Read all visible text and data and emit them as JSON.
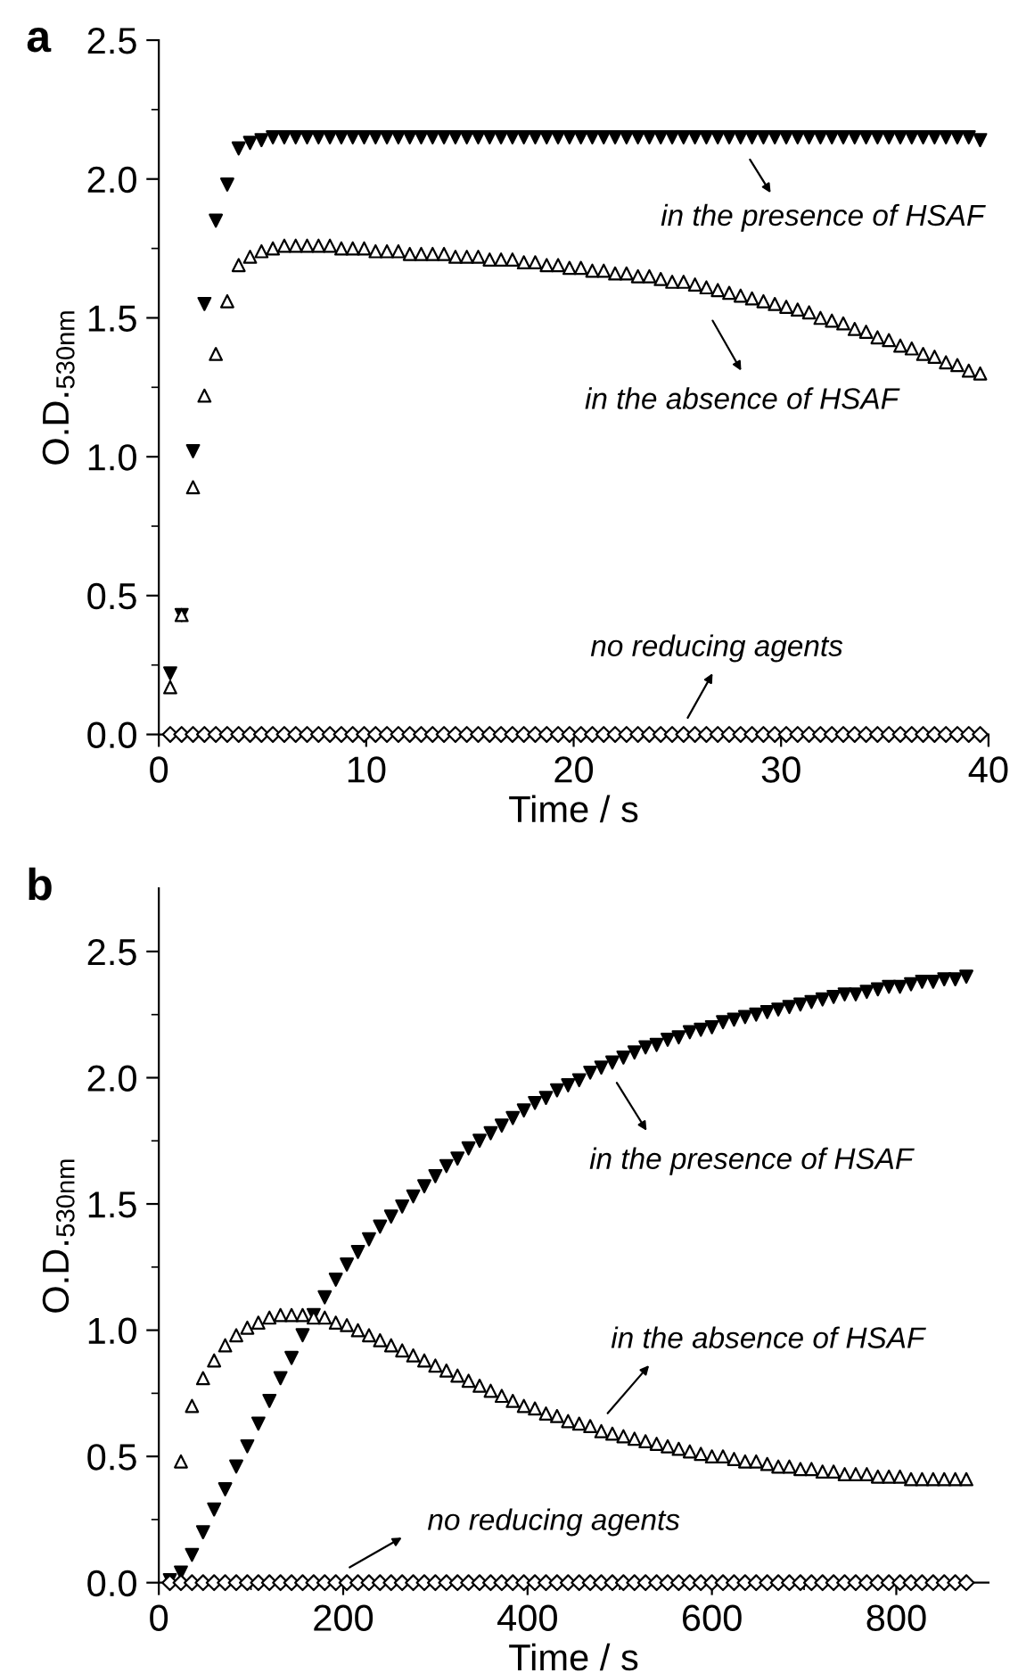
{
  "chart_data": [
    {
      "type": "scatter",
      "title": "a",
      "xlabel": "Time / s",
      "ylabel": "O.D.$_{530nm}$",
      "x": [
        0.55,
        1.1,
        1.65,
        2.2,
        2.75,
        3.3,
        3.85,
        4.4,
        4.95,
        5.5,
        6.05,
        6.6,
        7.15,
        7.7,
        8.25,
        8.8,
        9.35,
        9.9,
        10.45,
        11,
        11.55,
        12.1,
        12.65,
        13.2,
        13.75,
        14.3,
        14.85,
        15.4,
        15.95,
        16.5,
        17.05,
        17.6,
        18.15,
        18.7,
        19.25,
        19.8,
        20.35,
        20.9,
        21.45,
        22,
        22.55,
        23.1,
        23.65,
        24.2,
        24.75,
        25.3,
        25.85,
        26.4,
        26.95,
        27.5,
        28.05,
        28.6,
        29.15,
        29.7,
        30.25,
        30.8,
        31.35,
        31.9,
        32.45,
        33,
        33.55,
        34.1,
        34.65,
        35.2,
        35.75,
        36.3,
        36.85,
        37.4,
        37.95,
        38.5,
        39.05,
        39.6
      ],
      "series": [
        {
          "name": null,
          "color": "#000000",
          "marker": "triangle_down",
          "values": [
            0.22,
            0.43,
            1.02,
            1.55,
            1.85,
            1.98,
            2.11,
            2.13,
            2.14,
            2.15,
            2.15,
            2.15,
            2.15,
            2.15,
            2.15,
            2.15,
            2.15,
            2.15,
            2.15,
            2.15,
            2.15,
            2.15,
            2.15,
            2.15,
            2.15,
            2.15,
            2.15,
            2.15,
            2.15,
            2.15,
            2.15,
            2.15,
            2.15,
            2.15,
            2.15,
            2.15,
            2.15,
            2.15,
            2.15,
            2.15,
            2.15,
            2.15,
            2.15,
            2.15,
            2.15,
            2.15,
            2.15,
            2.15,
            2.15,
            2.15,
            2.15,
            2.15,
            2.15,
            2.15,
            2.15,
            2.15,
            2.15,
            2.15,
            2.15,
            2.15,
            2.15,
            2.15,
            2.15,
            2.15,
            2.15,
            2.15,
            2.15,
            2.15,
            2.15,
            2.15,
            2.15,
            2.14
          ]
        },
        {
          "name": null,
          "color": "#000000",
          "marker": "triangle",
          "values": [
            0.17,
            0.43,
            0.89,
            1.22,
            1.37,
            1.56,
            1.69,
            1.72,
            1.74,
            1.75,
            1.76,
            1.76,
            1.76,
            1.76,
            1.76,
            1.75,
            1.75,
            1.75,
            1.74,
            1.74,
            1.74,
            1.73,
            1.73,
            1.73,
            1.73,
            1.72,
            1.72,
            1.72,
            1.71,
            1.71,
            1.71,
            1.7,
            1.7,
            1.69,
            1.69,
            1.68,
            1.68,
            1.67,
            1.67,
            1.66,
            1.66,
            1.65,
            1.65,
            1.64,
            1.63,
            1.63,
            1.62,
            1.61,
            1.6,
            1.59,
            1.58,
            1.57,
            1.56,
            1.55,
            1.54,
            1.53,
            1.52,
            1.5,
            1.49,
            1.48,
            1.46,
            1.45,
            1.43,
            1.42,
            1.4,
            1.39,
            1.37,
            1.36,
            1.34,
            1.33,
            1.31,
            1.3
          ]
        },
        {
          "name": null,
          "color": "#000000",
          "marker": "diamond",
          "values": [
            0,
            0,
            0,
            0,
            0,
            0,
            0,
            0,
            0,
            0,
            0,
            0,
            0,
            0,
            0,
            0,
            0,
            0,
            0,
            0,
            0,
            0,
            0,
            0,
            0,
            0,
            0,
            0,
            0,
            0,
            0,
            0,
            0,
            0,
            0,
            0,
            0,
            0,
            0,
            0,
            0,
            0,
            0,
            0,
            0,
            0,
            0,
            0,
            0,
            0,
            0,
            0,
            0,
            0,
            0,
            0,
            0,
            0,
            0,
            0,
            0,
            0,
            0,
            0,
            0,
            0,
            0,
            0,
            0,
            0,
            0,
            0
          ]
        }
      ],
      "xlim": [
        0,
        40
      ],
      "xticks": [
        0,
        10,
        20,
        30,
        40
      ],
      "ylim": [
        0,
        2.5
      ],
      "yticks": [
        {
          "value": 0,
          "label": "0.0"
        },
        {
          "value": 0.25,
          "label": null
        },
        {
          "value": 0.5,
          "label": "0.5"
        },
        {
          "value": 0.75,
          "label": null
        },
        {
          "value": 1.0,
          "label": "1.0"
        },
        {
          "value": 1.25,
          "label": null
        },
        {
          "value": 1.5,
          "label": "1.5"
        },
        {
          "value": 1.75,
          "label": null
        },
        {
          "value": 2.0,
          "label": "2.0"
        },
        {
          "value": 2.25,
          "label": null
        },
        {
          "value": 2.5,
          "label": "2.5"
        }
      ],
      "grid": false,
      "legend": false,
      "annotations": [
        "in the presence of HSAF",
        "in the absence of HSAF",
        "no reducing agents"
      ]
    },
    {
      "type": "scatter",
      "title": "b",
      "xlabel": "Time / s",
      "ylabel": "O.D.$_{530nm}$",
      "x": [
        12,
        24,
        36,
        48,
        60,
        72,
        84,
        96,
        108,
        120,
        132,
        144,
        156,
        168,
        180,
        192,
        204,
        216,
        228,
        240,
        252,
        264,
        276,
        288,
        300,
        312,
        324,
        336,
        348,
        360,
        372,
        384,
        396,
        408,
        420,
        432,
        444,
        456,
        468,
        480,
        492,
        504,
        516,
        528,
        540,
        552,
        564,
        576,
        588,
        600,
        612,
        624,
        636,
        648,
        660,
        672,
        684,
        696,
        708,
        720,
        732,
        744,
        756,
        768,
        780,
        792,
        804,
        816,
        828,
        840,
        852,
        864,
        876
      ],
      "series": [
        {
          "name": null,
          "color": "#000000",
          "marker": "triangle_down",
          "values": [
            0.01,
            0.04,
            0.11,
            0.2,
            0.29,
            0.37,
            0.46,
            0.54,
            0.63,
            0.72,
            0.81,
            0.89,
            0.98,
            1.06,
            1.13,
            1.2,
            1.26,
            1.31,
            1.36,
            1.41,
            1.45,
            1.49,
            1.53,
            1.57,
            1.61,
            1.65,
            1.68,
            1.72,
            1.75,
            1.78,
            1.81,
            1.84,
            1.87,
            1.9,
            1.92,
            1.95,
            1.97,
            1.99,
            2.02,
            2.04,
            2.06,
            2.08,
            2.1,
            2.12,
            2.13,
            2.15,
            2.16,
            2.18,
            2.19,
            2.2,
            2.22,
            2.23,
            2.24,
            2.25,
            2.26,
            2.27,
            2.28,
            2.29,
            2.3,
            2.31,
            2.32,
            2.33,
            2.33,
            2.34,
            2.35,
            2.36,
            2.36,
            2.37,
            2.38,
            2.38,
            2.39,
            2.39,
            2.4
          ]
        },
        {
          "name": null,
          "color": "#000000",
          "marker": "triangle",
          "values": [
            null,
            0.48,
            0.7,
            0.81,
            0.88,
            0.94,
            0.98,
            1.01,
            1.03,
            1.05,
            1.06,
            1.06,
            1.06,
            1.05,
            1.05,
            1.03,
            1.02,
            1.0,
            0.98,
            0.96,
            0.94,
            0.92,
            0.9,
            0.88,
            0.86,
            0.84,
            0.82,
            0.8,
            0.78,
            0.76,
            0.74,
            0.72,
            0.7,
            0.69,
            0.67,
            0.66,
            0.64,
            0.63,
            0.62,
            0.6,
            0.59,
            0.58,
            0.57,
            0.56,
            0.55,
            0.54,
            0.53,
            0.52,
            0.51,
            0.5,
            0.5,
            0.49,
            0.48,
            0.48,
            0.47,
            0.46,
            0.46,
            0.45,
            0.45,
            0.44,
            0.44,
            0.43,
            0.43,
            0.43,
            0.42,
            0.42,
            0.42,
            0.41,
            0.41,
            0.41,
            0.41,
            0.41,
            0.41
          ]
        },
        {
          "name": null,
          "color": "#000000",
          "marker": "diamond",
          "values": [
            0,
            0,
            0,
            0,
            0,
            0,
            0,
            0,
            0,
            0,
            0,
            0,
            0,
            0,
            0,
            0,
            0,
            0,
            0,
            0,
            0,
            0,
            0,
            0,
            0,
            0,
            0,
            0,
            0,
            0,
            0,
            0,
            0,
            0,
            0,
            0,
            0,
            0,
            0,
            0,
            0,
            0,
            0,
            0,
            0,
            0,
            0,
            0,
            0,
            0,
            0,
            0,
            0,
            0,
            0,
            0,
            0,
            0,
            0,
            0,
            0,
            0,
            0,
            0,
            0,
            0,
            0,
            0,
            0,
            0,
            0,
            0,
            0
          ]
        }
      ],
      "xlim": [
        0,
        900
      ],
      "xticks": [
        0,
        {
          "value": 100,
          "label": null
        },
        200,
        {
          "value": 300,
          "label": null
        },
        400,
        {
          "value": 500,
          "label": null
        },
        600,
        {
          "value": 700,
          "label": null
        },
        800
      ],
      "ylim": [
        0,
        2.75
      ],
      "yticks": [
        {
          "value": 0,
          "label": "0.0"
        },
        {
          "value": 0.25,
          "label": null
        },
        {
          "value": 0.5,
          "label": "0.5"
        },
        {
          "value": 0.75,
          "label": null
        },
        {
          "value": 1.0,
          "label": "1.0"
        },
        {
          "value": 1.25,
          "label": null
        },
        {
          "value": 1.5,
          "label": "1.5"
        },
        {
          "value": 1.75,
          "label": null
        },
        {
          "value": 2.0,
          "label": "2.0"
        },
        {
          "value": 2.25,
          "label": null
        },
        {
          "value": 2.5,
          "label": "2.5"
        }
      ],
      "grid": false,
      "legend": false,
      "annotations": [
        "in the presence of HSAF",
        "in the absence of HSAF",
        "no reducing agents"
      ]
    }
  ]
}
